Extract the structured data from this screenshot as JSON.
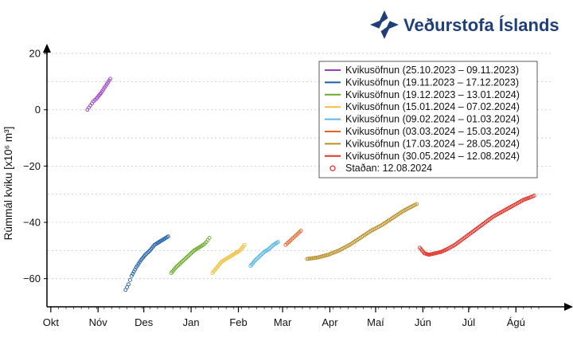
{
  "logo": {
    "text": "Veðurstofa Íslands",
    "color": "#1f3f78"
  },
  "chart_data": {
    "type": "scatter",
    "ylabel": "Rúmmál kviku [x10⁶ m³]",
    "ylim": [
      -70,
      22
    ],
    "yticks": [
      20,
      0,
      -20,
      -40,
      -60
    ],
    "ytick_labels": [
      "20",
      "0",
      "−20",
      "−40",
      "−60"
    ],
    "x_unit": "days since 2023-10-01",
    "xlim": [
      -2,
      332
    ],
    "x_ticks": [
      {
        "label": "Okt",
        "x": 0
      },
      {
        "label": "Nóv",
        "x": 31
      },
      {
        "label": "Des",
        "x": 61
      },
      {
        "label": "Jan",
        "x": 92
      },
      {
        "label": "Feb",
        "x": 123
      },
      {
        "label": "Mar",
        "x": 152
      },
      {
        "label": "Apr",
        "x": 183
      },
      {
        "label": "Maí",
        "x": 213
      },
      {
        "label": "Jún",
        "x": 244
      },
      {
        "label": "Júl",
        "x": 274
      },
      {
        "label": "Ágú",
        "x": 305
      }
    ],
    "grid": "horizontal dashed",
    "legend_position": "top-right",
    "series": [
      {
        "name": "Kvikusöfnun (25.10.2023 – 09.11.2023)",
        "color": "#9b3fc0",
        "points": [
          [
            24,
            0
          ],
          [
            26,
            1.5
          ],
          [
            28,
            3
          ],
          [
            30,
            4
          ],
          [
            33,
            6
          ],
          [
            36,
            8.5
          ],
          [
            39,
            11
          ]
        ]
      },
      {
        "name": "Kvikusöfnun (19.11.2023 – 17.12.2023)",
        "color": "#1f5fa8",
        "points": [
          [
            49,
            -64
          ],
          [
            51,
            -62
          ],
          [
            53,
            -59
          ],
          [
            56,
            -56
          ],
          [
            59,
            -53.5
          ],
          [
            62,
            -51.5
          ],
          [
            65,
            -50
          ],
          [
            68,
            -48
          ],
          [
            71,
            -47
          ],
          [
            74,
            -46
          ],
          [
            77,
            -45
          ]
        ]
      },
      {
        "name": "Kvikusöfnun (19.12.2023 – 13.01.2024)",
        "color": "#6aaa2a",
        "points": [
          [
            79,
            -58
          ],
          [
            82,
            -56
          ],
          [
            85,
            -54.5
          ],
          [
            88,
            -53
          ],
          [
            91,
            -51.5
          ],
          [
            94,
            -50
          ],
          [
            97,
            -49
          ],
          [
            100,
            -48
          ],
          [
            102,
            -47
          ],
          [
            104,
            -45.5
          ]
        ]
      },
      {
        "name": "Kvikusöfnun (15.01.2024 – 07.02.2024)",
        "color": "#f0c040",
        "points": [
          [
            106,
            -58
          ],
          [
            109,
            -56
          ],
          [
            112,
            -54
          ],
          [
            115,
            -53
          ],
          [
            118,
            -52
          ],
          [
            121,
            -51
          ],
          [
            124,
            -50
          ],
          [
            127,
            -48
          ]
        ]
      },
      {
        "name": "Kvikusöfnun (09.02.2024 – 01.03.2024)",
        "color": "#5ab6e8",
        "points": [
          [
            131,
            -55.5
          ],
          [
            134,
            -53.5
          ],
          [
            137,
            -52
          ],
          [
            140,
            -50.5
          ],
          [
            143,
            -49.5
          ],
          [
            146,
            -48
          ],
          [
            149,
            -47
          ]
        ]
      },
      {
        "name": "Kvikusöfnun (03.03.2024 – 15.03.2024)",
        "color": "#e0642a",
        "points": [
          [
            154,
            -48
          ],
          [
            156,
            -47
          ],
          [
            158,
            -46
          ],
          [
            160,
            -45
          ],
          [
            162,
            -44
          ],
          [
            164,
            -43
          ]
        ]
      },
      {
        "name": "Kvikusöfnun (17.03.2024 – 28.05.2024)",
        "color": "#b8902a",
        "points": [
          [
            168,
            -53
          ],
          [
            175,
            -52.5
          ],
          [
            182,
            -51.5
          ],
          [
            189,
            -50
          ],
          [
            196,
            -48
          ],
          [
            203,
            -45.5
          ],
          [
            210,
            -43
          ],
          [
            217,
            -41
          ],
          [
            224,
            -38.5
          ],
          [
            231,
            -36
          ],
          [
            238,
            -34
          ],
          [
            240,
            -33.5
          ]
        ]
      },
      {
        "name": "Kvikusöfnun (30.05.2024 – 12.08.2024)",
        "color": "#e0342a",
        "points": [
          [
            242,
            -49
          ],
          [
            245,
            -51
          ],
          [
            248,
            -51.5
          ],
          [
            252,
            -51
          ],
          [
            256,
            -50.5
          ],
          [
            260,
            -49.5
          ],
          [
            265,
            -48
          ],
          [
            270,
            -46
          ],
          [
            275,
            -44
          ],
          [
            280,
            -42
          ],
          [
            285,
            -40
          ],
          [
            290,
            -38
          ],
          [
            295,
            -36.5
          ],
          [
            300,
            -35
          ],
          [
            305,
            -33.5
          ],
          [
            310,
            -32
          ],
          [
            315,
            -31
          ],
          [
            317,
            -30.5
          ]
        ]
      }
    ],
    "current_marker_label": "Staðan: 12.08.2024"
  }
}
